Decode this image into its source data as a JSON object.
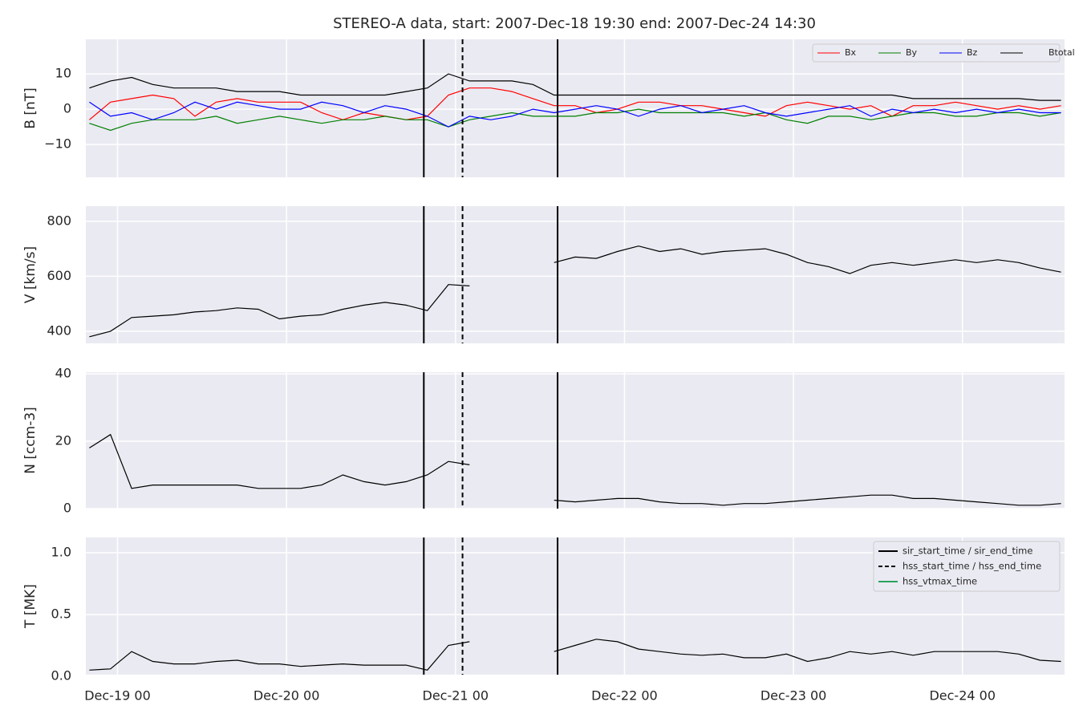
{
  "chart_data": [
    {
      "type": "line",
      "title": "STEREO-A data, start: 2007-Dec-18 19:30  end: 2007-Dec-24 14:30",
      "ylabel": "B [nT]",
      "ylim": [
        -19.3,
        19.8
      ],
      "yticks": [
        {
          "value": -10,
          "label": "−10"
        },
        0,
        10
      ],
      "grid": true,
      "legend": "upper right",
      "x": [
        "Dec-18 20",
        "Dec-18 23",
        "Dec-19 02",
        "Dec-19 05",
        "Dec-19 08",
        "Dec-19 11",
        "Dec-19 14",
        "Dec-19 17",
        "Dec-19 20",
        "Dec-19 23",
        "Dec-20 02",
        "Dec-20 05",
        "Dec-20 08",
        "Dec-20 11",
        "Dec-20 14",
        "Dec-20 17",
        "Dec-20 20",
        "Dec-20 23",
        "Dec-21 02",
        "Dec-21 05",
        "Dec-21 08",
        "Dec-21 11",
        "Dec-21 14",
        "Dec-21 17",
        "Dec-21 20",
        "Dec-21 23",
        "Dec-22 02",
        "Dec-22 05",
        "Dec-22 08",
        "Dec-22 11",
        "Dec-22 14",
        "Dec-22 17",
        "Dec-22 20",
        "Dec-22 23",
        "Dec-23 02",
        "Dec-23 05",
        "Dec-23 08",
        "Dec-23 11",
        "Dec-23 14",
        "Dec-23 17",
        "Dec-23 20",
        "Dec-23 23",
        "Dec-24 02",
        "Dec-24 05",
        "Dec-24 08",
        "Dec-24 11",
        "Dec-24 14"
      ],
      "series": [
        {
          "name": "Bx",
          "color": "#ff0000",
          "values": [
            -3,
            2,
            3,
            4,
            3,
            -2,
            2,
            3,
            2,
            2,
            2,
            -1,
            -3,
            -1,
            -2,
            -3,
            -2,
            4,
            6,
            6,
            5,
            3,
            1,
            1,
            -1,
            0,
            2,
            2,
            1,
            1,
            0,
            -1,
            -2,
            1,
            2,
            1,
            0,
            1,
            -2,
            1,
            1,
            2,
            1,
            0,
            1,
            0,
            1
          ]
        },
        {
          "name": "By",
          "color": "#008000",
          "values": [
            -4,
            -6,
            -4,
            -3,
            -3,
            -3,
            -2,
            -4,
            -3,
            -2,
            -3,
            -4,
            -3,
            -3,
            -2,
            -3,
            -3,
            -5,
            -3,
            -2,
            -1,
            -2,
            -2,
            -2,
            -1,
            -1,
            0,
            -1,
            -1,
            -1,
            -1,
            -2,
            -1,
            -3,
            -4,
            -2,
            -2,
            -3,
            -2,
            -1,
            -1,
            -2,
            -2,
            -1,
            -1,
            -2,
            -1
          ]
        },
        {
          "name": "Bz",
          "color": "#0000ff",
          "values": [
            2,
            -2,
            -1,
            -3,
            -1,
            2,
            0,
            2,
            1,
            0,
            0,
            2,
            1,
            -1,
            1,
            0,
            -2,
            -5,
            -2,
            -3,
            -2,
            0,
            -1,
            0,
            1,
            0,
            -2,
            0,
            1,
            -1,
            0,
            1,
            -1,
            -2,
            -1,
            0,
            1,
            -2,
            0,
            -1,
            0,
            -1,
            0,
            -1,
            0,
            -1,
            -1
          ]
        },
        {
          "name": "Btotal",
          "color": "#000000",
          "values": [
            6,
            8,
            9,
            7,
            6,
            6,
            6,
            5,
            5,
            5,
            4,
            4,
            4,
            4,
            4,
            5,
            6,
            10,
            8,
            8,
            8,
            7,
            4,
            4,
            4,
            4,
            4,
            4,
            4,
            4,
            4,
            4,
            4,
            4,
            4,
            4,
            4,
            4,
            4,
            3,
            3,
            3,
            3,
            3,
            3,
            2.5,
            2.5
          ]
        }
      ]
    },
    {
      "type": "line",
      "ylabel": "V [km/s]",
      "ylim": [
        356,
        855
      ],
      "yticks": [
        400,
        600,
        800
      ],
      "grid": true,
      "x": [
        "Dec-18 20",
        "Dec-18 23",
        "Dec-19 02",
        "Dec-19 05",
        "Dec-19 08",
        "Dec-19 11",
        "Dec-19 14",
        "Dec-19 17",
        "Dec-19 20",
        "Dec-19 23",
        "Dec-20 02",
        "Dec-20 05",
        "Dec-20 08",
        "Dec-20 11",
        "Dec-20 14",
        "Dec-20 17",
        "Dec-20 20",
        "Dec-20 23",
        "Dec-21 02",
        "Dec-21 05",
        "Dec-21 08",
        "Dec-21 11",
        "Dec-21 14",
        "Dec-21 17",
        "Dec-21 20",
        "Dec-21 23",
        "Dec-22 02",
        "Dec-22 05",
        "Dec-22 08",
        "Dec-22 11",
        "Dec-22 14",
        "Dec-22 17",
        "Dec-22 20",
        "Dec-22 23",
        "Dec-23 02",
        "Dec-23 05",
        "Dec-23 08",
        "Dec-23 11",
        "Dec-23 14",
        "Dec-23 17",
        "Dec-23 20",
        "Dec-23 23",
        "Dec-24 02",
        "Dec-24 05",
        "Dec-24 08",
        "Dec-24 11",
        "Dec-24 14"
      ],
      "series": [
        {
          "color": "#000000",
          "values": [
            380,
            400,
            450,
            455,
            460,
            470,
            475,
            485,
            480,
            445,
            455,
            460,
            480,
            495,
            505,
            495,
            475,
            570,
            565,
            null,
            null,
            null,
            650,
            670,
            665,
            690,
            710,
            690,
            700,
            680,
            690,
            695,
            700,
            680,
            650,
            635,
            610,
            640,
            650,
            640,
            650,
            660,
            650,
            660,
            650,
            630,
            615
          ]
        }
      ]
    },
    {
      "type": "line",
      "ylabel": "N [ccm-3]",
      "ylim": [
        0,
        40.5
      ],
      "yticks": [
        0,
        20,
        40
      ],
      "grid": true,
      "x": [
        "Dec-18 20",
        "Dec-18 23",
        "Dec-19 02",
        "Dec-19 05",
        "Dec-19 08",
        "Dec-19 11",
        "Dec-19 14",
        "Dec-19 17",
        "Dec-19 20",
        "Dec-19 23",
        "Dec-20 02",
        "Dec-20 05",
        "Dec-20 08",
        "Dec-20 11",
        "Dec-20 14",
        "Dec-20 17",
        "Dec-20 20",
        "Dec-20 23",
        "Dec-21 02",
        "Dec-21 05",
        "Dec-21 08",
        "Dec-21 11",
        "Dec-21 14",
        "Dec-21 17",
        "Dec-21 20",
        "Dec-21 23",
        "Dec-22 02",
        "Dec-22 05",
        "Dec-22 08",
        "Dec-22 11",
        "Dec-22 14",
        "Dec-22 17",
        "Dec-22 20",
        "Dec-22 23",
        "Dec-23 02",
        "Dec-23 05",
        "Dec-23 08",
        "Dec-23 11",
        "Dec-23 14",
        "Dec-23 17",
        "Dec-23 20",
        "Dec-23 23",
        "Dec-24 02",
        "Dec-24 05",
        "Dec-24 08",
        "Dec-24 11",
        "Dec-24 14"
      ],
      "series": [
        {
          "color": "#000000",
          "values": [
            18,
            22,
            6,
            7,
            7,
            7,
            7,
            7,
            6,
            6,
            6,
            7,
            10,
            8,
            7,
            8,
            10,
            14,
            13,
            null,
            null,
            null,
            2.5,
            2,
            2.5,
            3,
            3,
            2,
            1.5,
            1.5,
            1,
            1.5,
            1.5,
            2,
            2.5,
            3,
            3.5,
            4,
            4,
            3,
            3,
            2.5,
            2,
            1.5,
            1,
            1,
            1.5
          ]
        }
      ]
    },
    {
      "type": "line",
      "ylabel": "T [MK]",
      "ylim": [
        0.013,
        1.123
      ],
      "yticks": [
        {
          "value": 0,
          "label": "0.0"
        },
        0.5,
        {
          "value": 1,
          "label": "1.0"
        }
      ],
      "grid": true,
      "legend": "upper right",
      "xlim": [
        "Dec-18 19:30",
        "Dec-24 14:30"
      ],
      "xticks": [
        "Dec-19 00",
        "Dec-20 00",
        "Dec-21 00",
        "Dec-22 00",
        "Dec-23 00",
        "Dec-24 00"
      ],
      "x": [
        "Dec-18 20",
        "Dec-18 23",
        "Dec-19 02",
        "Dec-19 05",
        "Dec-19 08",
        "Dec-19 11",
        "Dec-19 14",
        "Dec-19 17",
        "Dec-19 20",
        "Dec-19 23",
        "Dec-20 02",
        "Dec-20 05",
        "Dec-20 08",
        "Dec-20 11",
        "Dec-20 14",
        "Dec-20 17",
        "Dec-20 20",
        "Dec-20 23",
        "Dec-21 02",
        "Dec-21 05",
        "Dec-21 08",
        "Dec-21 11",
        "Dec-21 14",
        "Dec-21 17",
        "Dec-21 20",
        "Dec-21 23",
        "Dec-22 02",
        "Dec-22 05",
        "Dec-22 08",
        "Dec-22 11",
        "Dec-22 14",
        "Dec-22 17",
        "Dec-22 20",
        "Dec-22 23",
        "Dec-23 02",
        "Dec-23 05",
        "Dec-23 08",
        "Dec-23 11",
        "Dec-23 14",
        "Dec-23 17",
        "Dec-23 20",
        "Dec-23 23",
        "Dec-24 02",
        "Dec-24 05",
        "Dec-24 08",
        "Dec-24 11",
        "Dec-24 14"
      ],
      "series": [
        {
          "color": "#000000",
          "values": [
            0.05,
            0.06,
            0.2,
            0.12,
            0.1,
            0.1,
            0.12,
            0.13,
            0.1,
            0.1,
            0.08,
            0.09,
            0.1,
            0.09,
            0.09,
            0.09,
            0.05,
            0.25,
            0.28,
            null,
            null,
            null,
            0.2,
            0.25,
            0.3,
            0.28,
            0.22,
            0.2,
            0.18,
            0.17,
            0.18,
            0.15,
            0.15,
            0.18,
            0.12,
            0.15,
            0.2,
            0.18,
            0.2,
            0.17,
            0.2,
            0.2,
            0.2,
            0.2,
            0.18,
            0.13,
            0.12
          ]
        }
      ],
      "events": [
        {
          "time": "Dec-20 19:30",
          "style": "solid"
        },
        {
          "time": "Dec-21 01:00",
          "style": "dashed"
        },
        {
          "time": "Dec-21 14:30",
          "style": "solid"
        }
      ],
      "event_legend": [
        {
          "name": "sir_start_time / sir_end_time",
          "style": "solid",
          "color": "#000000"
        },
        {
          "name": "hss_start_time / hss_end_time",
          "style": "dashed",
          "color": "#000000"
        },
        {
          "name": "hss_vtmax_time",
          "style": "solid",
          "color": "#2ca25f"
        }
      ]
    }
  ]
}
